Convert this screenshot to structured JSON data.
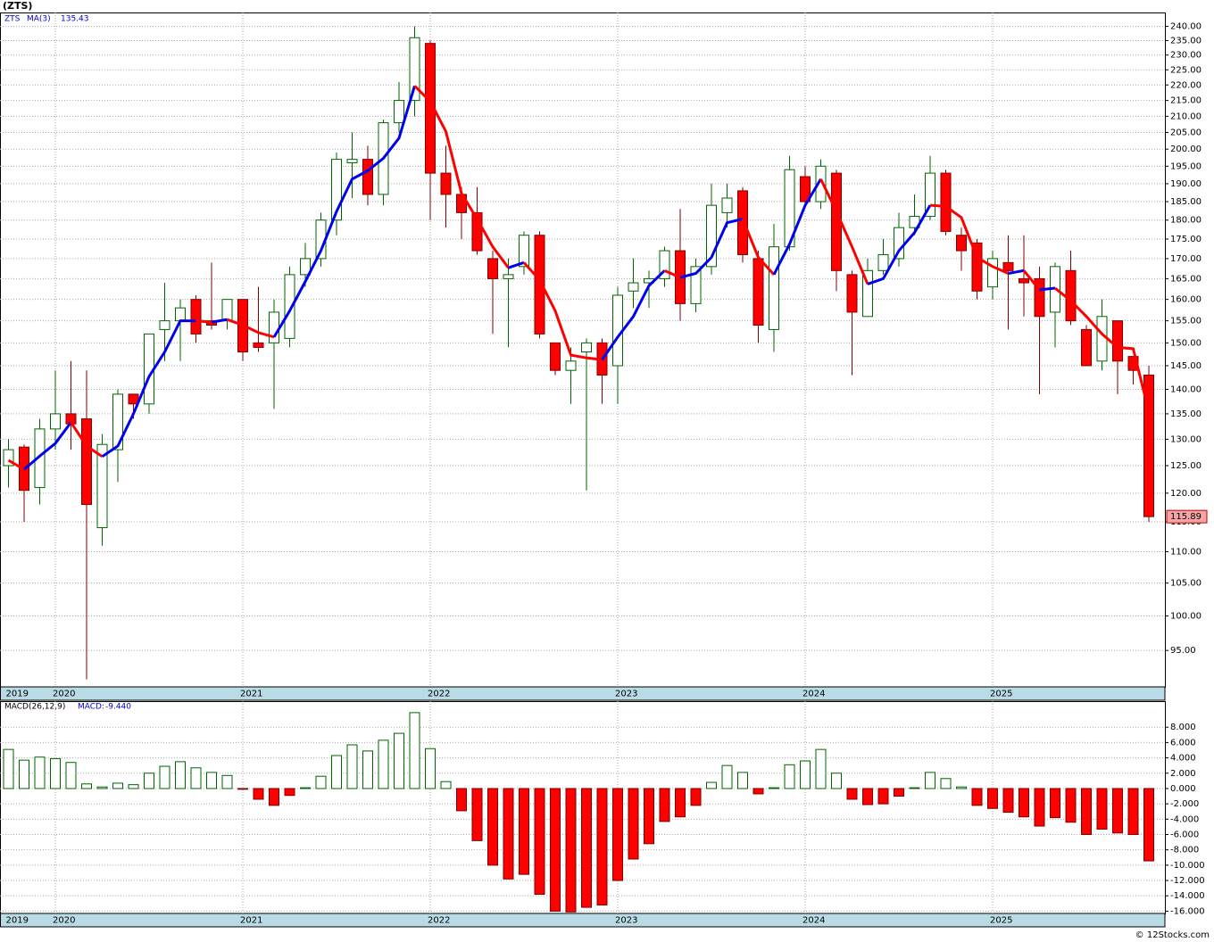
{
  "chart_data": [
    {
      "type": "candlestick",
      "title": "(ZTS)",
      "name": "ZTS",
      "log_scale": true,
      "grid": true,
      "up_color": "#006400",
      "down_color": "#ff0000",
      "ma_rising_color": "#0000ee",
      "ma_falling_color": "#ff0000",
      "categories": [
        "2019",
        null,
        null,
        "2020",
        null,
        null,
        null,
        null,
        null,
        null,
        null,
        null,
        null,
        null,
        null,
        "2021",
        null,
        null,
        null,
        null,
        null,
        null,
        null,
        null,
        null,
        null,
        null,
        "2022",
        null,
        null,
        null,
        null,
        null,
        null,
        null,
        null,
        null,
        null,
        null,
        "2023",
        null,
        null,
        null,
        null,
        null,
        null,
        null,
        null,
        null,
        null,
        null,
        "2024",
        null,
        null,
        null,
        null,
        null,
        null,
        null,
        null,
        null,
        null,
        null,
        "2025",
        null,
        null,
        null,
        null,
        null,
        null,
        null,
        null,
        null,
        null
      ],
      "open": [
        125,
        128.5,
        121,
        132,
        135,
        134,
        114,
        128,
        139,
        137,
        153,
        155,
        160,
        155,
        155,
        160,
        150,
        150,
        151,
        166,
        170,
        180,
        196,
        197,
        187,
        208,
        215,
        234,
        193,
        187,
        182,
        170,
        165,
        168,
        176,
        150,
        144,
        148,
        150,
        145,
        162,
        164,
        165,
        172,
        159,
        168,
        182,
        188,
        170,
        153,
        173,
        192,
        185,
        193,
        166,
        156,
        167,
        170,
        178,
        181,
        193,
        176,
        174,
        163,
        169,
        165,
        165,
        157,
        167,
        153,
        146,
        155,
        147,
        143
      ],
      "high": [
        130,
        129,
        134,
        144,
        146,
        144,
        131,
        140,
        139,
        152,
        164,
        160,
        161,
        169,
        160,
        160,
        163,
        160,
        168,
        174,
        182,
        199,
        205,
        201,
        209,
        221,
        240,
        235,
        201,
        189,
        189,
        172,
        170,
        177,
        177,
        150,
        149,
        151,
        151,
        163,
        170,
        167,
        173,
        183,
        170,
        190,
        190,
        189,
        172,
        179,
        198,
        195,
        197,
        194,
        167,
        170,
        175,
        182,
        187,
        198,
        194,
        178,
        175,
        172,
        176,
        176,
        168,
        169,
        172,
        154,
        160,
        155,
        147,
        145
      ],
      "low": [
        121,
        115,
        118,
        128,
        128,
        91,
        111,
        122,
        134,
        135,
        146,
        146,
        150,
        153,
        153,
        146,
        148,
        136,
        149,
        163,
        168,
        176,
        186,
        184,
        184,
        205,
        210,
        180,
        178,
        175,
        171,
        152,
        149,
        166,
        151,
        143,
        137,
        120.5,
        137,
        137,
        158,
        158,
        163,
        155,
        157,
        166,
        178,
        169,
        150,
        148,
        172,
        184,
        183,
        162,
        143,
        156,
        166,
        168,
        176,
        180,
        176,
        167,
        160,
        160,
        153,
        156,
        139,
        149,
        154,
        145,
        144,
        139,
        141,
        115
      ],
      "close": [
        128,
        120.5,
        132,
        135,
        133,
        118,
        129,
        139,
        137,
        152,
        155,
        158,
        152,
        154,
        160,
        148,
        149,
        157,
        166,
        170,
        180,
        197,
        197,
        187,
        208,
        215,
        236,
        193,
        187,
        182,
        172,
        165,
        166,
        176,
        152,
        144,
        146,
        150,
        143,
        161,
        164,
        165,
        172,
        159,
        168,
        184,
        186,
        171,
        154,
        173,
        194,
        185,
        195,
        167,
        157,
        167,
        171,
        178,
        181,
        193,
        177,
        172,
        162,
        170,
        167,
        164,
        156,
        168,
        155,
        145,
        156,
        146,
        144,
        115.89
      ],
      "series": [
        {
          "name": "MA(3)",
          "values": [
            126,
            124.3,
            126.8,
            129.2,
            133.3,
            128.7,
            126.7,
            128.7,
            135,
            142.7,
            148,
            155,
            155,
            154.7,
            155.3,
            154,
            152.3,
            151.3,
            157.3,
            164.3,
            172,
            182.3,
            191.3,
            193.7,
            197.3,
            203.3,
            219.7,
            214.7,
            205.3,
            187.3,
            180.3,
            173,
            167.7,
            169,
            164.7,
            157.3,
            147.3,
            146.7,
            146.3,
            151.3,
            156,
            163.3,
            167,
            165.3,
            166.3,
            170.3,
            179.3,
            180.3,
            170.3,
            166,
            173.7,
            184,
            191.3,
            182.3,
            173,
            163.7,
            165,
            172,
            176.7,
            184,
            183.7,
            180.7,
            170.3,
            168,
            166.3,
            167,
            162.3,
            162.7,
            159.7,
            156,
            152,
            149,
            148.7,
            135.43
          ]
        }
      ],
      "ylim": [
        90,
        245
      ],
      "yticks": [
        {
          "value": 95,
          "label": "95.00"
        },
        {
          "value": 100,
          "label": "100.00"
        },
        {
          "value": 105,
          "label": "105.00"
        },
        {
          "value": 110,
          "label": "110.00"
        },
        {
          "value": 115,
          "label": "115.00"
        },
        {
          "value": 120,
          "label": "120.00"
        },
        {
          "value": 125,
          "label": "125.00"
        },
        {
          "value": 130,
          "label": "130.00"
        },
        {
          "value": 135,
          "label": "135.00"
        },
        {
          "value": 140,
          "label": "140.00"
        },
        {
          "value": 145,
          "label": "145.00"
        },
        {
          "value": 150,
          "label": "150.00"
        },
        {
          "value": 155,
          "label": "155.00"
        },
        {
          "value": 160,
          "label": "160.00"
        },
        {
          "value": 165,
          "label": "165.00"
        },
        {
          "value": 170,
          "label": "170.00"
        },
        {
          "value": 175,
          "label": "175.00"
        },
        {
          "value": 180,
          "label": "180.00"
        },
        {
          "value": 185,
          "label": "185.00"
        },
        {
          "value": 190,
          "label": "190.00"
        },
        {
          "value": 195,
          "label": "195.00"
        },
        {
          "value": 200,
          "label": "200.00"
        },
        {
          "value": 205,
          "label": "205.00"
        },
        {
          "value": 210,
          "label": "210.00"
        },
        {
          "value": 215,
          "label": "215.00"
        },
        {
          "value": 220,
          "label": "220.00"
        },
        {
          "value": 225,
          "label": "225.00"
        },
        {
          "value": 230,
          "label": "230.00"
        },
        {
          "value": 235,
          "label": "235.00"
        },
        {
          "value": 240,
          "label": "240.00"
        }
      ]
    },
    {
      "type": "bar",
      "title": "MACD(26,12,9)",
      "grid": true,
      "pos_color": "#006400",
      "neg_color": "#ff0000",
      "categories": [
        "2019",
        null,
        null,
        "2020",
        null,
        null,
        null,
        null,
        null,
        null,
        null,
        null,
        null,
        null,
        null,
        "2021",
        null,
        null,
        null,
        null,
        null,
        null,
        null,
        null,
        null,
        null,
        null,
        "2022",
        null,
        null,
        null,
        null,
        null,
        null,
        null,
        null,
        null,
        null,
        null,
        "2023",
        null,
        null,
        null,
        null,
        null,
        null,
        null,
        null,
        null,
        null,
        null,
        "2024",
        null,
        null,
        null,
        null,
        null,
        null,
        null,
        null,
        null,
        null,
        null,
        "2025",
        null,
        null,
        null,
        null,
        null,
        null,
        null,
        null,
        null,
        null
      ],
      "series": [
        {
          "name": "MACD:",
          "values": [
            5.1,
            3.7,
            4.1,
            3.9,
            3.4,
            0.6,
            0.2,
            0.7,
            0.5,
            2.0,
            2.9,
            3.5,
            2.7,
            2.1,
            1.7,
            -0.1,
            -1.4,
            -2.2,
            -0.9,
            0.1,
            1.6,
            4.3,
            5.7,
            4.9,
            6.3,
            7.2,
            9.9,
            5.2,
            0.9,
            -2.9,
            -6.8,
            -10.0,
            -11.8,
            -11.2,
            -13.8,
            -16.0,
            -16.1,
            -15.5,
            -15.2,
            -12.0,
            -9.2,
            -7.2,
            -4.3,
            -3.7,
            -2.2,
            0.8,
            3.0,
            2.1,
            -0.7,
            0.1,
            3.1,
            3.6,
            5.1,
            2.0,
            -1.4,
            -2.1,
            -2.0,
            -1.0,
            0.1,
            2.1,
            1.3,
            0.2,
            -2.2,
            -2.6,
            -3.1,
            -3.7,
            -4.9,
            -3.8,
            -4.4,
            -6.0,
            -5.3,
            -5.8,
            -6.0,
            -9.44
          ]
        }
      ],
      "last_label": "-9.440",
      "ylim": [
        -16.3,
        11.4
      ],
      "yticks": [
        {
          "value": 8,
          "label": "8.000"
        },
        {
          "value": 6,
          "label": "6.000"
        },
        {
          "value": 4,
          "label": "4.000"
        },
        {
          "value": 2,
          "label": "2.000"
        },
        {
          "value": 0,
          "label": "0.000"
        },
        {
          "value": -2,
          "label": "-2.000"
        },
        {
          "value": -4,
          "label": "-4.000"
        },
        {
          "value": -6,
          "label": "-6.000"
        },
        {
          "value": -8,
          "label": "-8.000"
        },
        {
          "value": -10,
          "label": "-10.000"
        },
        {
          "value": -12,
          "label": "-12.000"
        },
        {
          "value": -14,
          "label": "-14.000"
        },
        {
          "value": -16,
          "label": "-16.000"
        }
      ]
    }
  ],
  "footer": "© 12Stocks.com"
}
